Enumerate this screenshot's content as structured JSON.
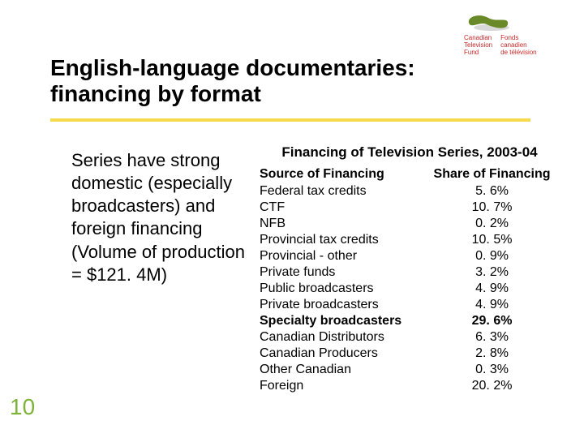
{
  "logo": {
    "en_l1": "Canadian",
    "en_l2": "Television",
    "en_l3": "Fund",
    "fr_l1": "Fonds",
    "fr_l2": "canadien",
    "fr_l3": "de télévision",
    "bean_color": "#6a8a2a",
    "shadow_color": "#d9d9d9",
    "text_color": "#c62828"
  },
  "title_l1": "English-language documentaries:",
  "title_l2": "financing by format",
  "rule_color": "#f6d94c",
  "body_para": "Series have strong domestic (especially broadcasters) and foreign financing (Volume of production = $121. 4M)",
  "table": {
    "title": "Financing of Television Series, 2003-04",
    "col_left": "Source of Financing",
    "col_right": "Share of Financing",
    "rows": [
      {
        "label": "Federal tax credits",
        "value": "5. 6%",
        "bold": false
      },
      {
        "label": "CTF",
        "value": "10. 7%",
        "bold": false
      },
      {
        "label": "NFB",
        "value": "0. 2%",
        "bold": false
      },
      {
        "label": "Provincial tax credits",
        "value": "10. 5%",
        "bold": false
      },
      {
        "label": "Provincial - other",
        "value": "0. 9%",
        "bold": false
      },
      {
        "label": "Private funds",
        "value": "3. 2%",
        "bold": false
      },
      {
        "label": "Public broadcasters",
        "value": "4. 9%",
        "bold": false
      },
      {
        "label": "Private broadcasters",
        "value": "4. 9%",
        "bold": false
      },
      {
        "label": "Specialty broadcasters",
        "value": "29. 6%",
        "bold": true
      },
      {
        "label": "Canadian Distributors",
        "value": "6. 3%",
        "bold": false
      },
      {
        "label": "Canadian Producers",
        "value": "2. 8%",
        "bold": false
      },
      {
        "label": "Other Canadian",
        "value": "0. 3%",
        "bold": false
      },
      {
        "label": "Foreign",
        "value": "20. 2%",
        "bold": false
      }
    ]
  },
  "page_number": "10",
  "page_number_color": "#7eb338"
}
